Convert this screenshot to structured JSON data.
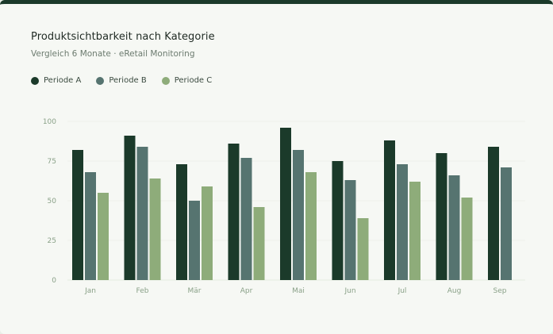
{
  "chart_data": {
    "type": "bar",
    "title": "Produktsichtbarkeit nach Kategorie",
    "subtitle": "Vergleich 6 Monate · eRetail Monitoring",
    "categories": [
      "Jan",
      "Feb",
      "Mär",
      "Apr",
      "Mai",
      "Jun",
      "Jul",
      "Aug",
      "Sep"
    ],
    "series": [
      {
        "name": "Periode A",
        "color": "#1b3a2a",
        "values": [
          82,
          91,
          73,
          86,
          96,
          75,
          88,
          80,
          84
        ]
      },
      {
        "name": "Periode B",
        "color": "#567470",
        "values": [
          68,
          84,
          50,
          77,
          82,
          63,
          73,
          66,
          71
        ]
      },
      {
        "name": "Periode C",
        "color": "#8eac7a",
        "values": [
          55,
          64,
          59,
          46,
          68,
          39,
          62,
          52,
          null
        ]
      }
    ],
    "yticks": [
      0,
      25,
      50,
      75,
      100
    ],
    "ylim": [
      0,
      100
    ],
    "xlabel": "",
    "ylabel": "",
    "grid": true,
    "legend_position": "top-left"
  }
}
